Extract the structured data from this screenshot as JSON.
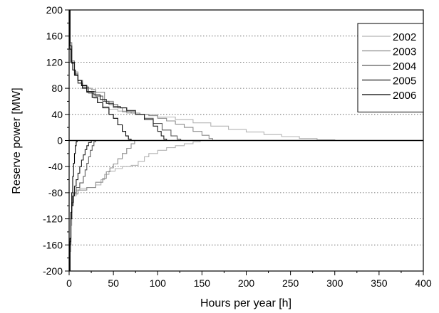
{
  "chart_data": {
    "type": "line",
    "title": "",
    "xlabel": "Hours per year [h]",
    "ylabel": "Reserve power [MW]",
    "xlim": [
      0,
      400
    ],
    "ylim": [
      -200,
      200
    ],
    "x_ticks": [
      0,
      50,
      100,
      150,
      200,
      250,
      300,
      350,
      400
    ],
    "y_ticks": [
      -200,
      -160,
      -120,
      -80,
      -40,
      0,
      40,
      80,
      120,
      160,
      200
    ],
    "grid": "horizontal dotted",
    "legend_position": "top-right",
    "series": [
      {
        "name": "2002",
        "color": "#b4b4b4",
        "upper": [
          [
            0,
            200
          ],
          [
            1,
            150
          ],
          [
            3,
            120
          ],
          [
            6,
            100
          ],
          [
            10,
            88
          ],
          [
            15,
            80
          ],
          [
            22,
            72
          ],
          [
            28,
            65
          ],
          [
            32,
            58
          ],
          [
            38,
            52
          ],
          [
            45,
            48
          ],
          [
            55,
            45
          ],
          [
            65,
            42
          ],
          [
            80,
            40
          ],
          [
            100,
            36
          ],
          [
            120,
            32
          ],
          [
            140,
            27
          ],
          [
            160,
            22
          ],
          [
            180,
            17
          ],
          [
            200,
            13
          ],
          [
            220,
            9
          ],
          [
            240,
            6
          ],
          [
            260,
            3
          ],
          [
            280,
            1
          ],
          [
            300,
            0
          ],
          [
            400,
            0
          ]
        ],
        "lower": [
          [
            0,
            -200
          ],
          [
            1,
            -170
          ],
          [
            2,
            -130
          ],
          [
            3,
            -100
          ],
          [
            5,
            -85
          ],
          [
            8,
            -76
          ],
          [
            12,
            -73
          ],
          [
            20,
            -72
          ],
          [
            30,
            -68
          ],
          [
            36,
            -60
          ],
          [
            40,
            -52
          ],
          [
            45,
            -47
          ],
          [
            52,
            -43
          ],
          [
            60,
            -40
          ],
          [
            70,
            -38
          ],
          [
            78,
            -32
          ],
          [
            85,
            -25
          ],
          [
            90,
            -20
          ],
          [
            100,
            -15
          ],
          [
            110,
            -11
          ],
          [
            120,
            -8
          ],
          [
            130,
            -5
          ],
          [
            140,
            -2
          ],
          [
            148,
            0
          ],
          [
            400,
            0
          ]
        ]
      },
      {
        "name": "2003",
        "color": "#8c8c8c",
        "upper": [
          [
            0,
            200
          ],
          [
            1,
            150
          ],
          [
            3,
            122
          ],
          [
            6,
            105
          ],
          [
            10,
            92
          ],
          [
            15,
            85
          ],
          [
            20,
            80
          ],
          [
            25,
            78
          ],
          [
            30,
            74
          ],
          [
            40,
            60
          ],
          [
            50,
            50
          ],
          [
            60,
            44
          ],
          [
            70,
            42
          ],
          [
            80,
            40
          ],
          [
            90,
            38
          ],
          [
            100,
            34
          ],
          [
            110,
            30
          ],
          [
            120,
            25
          ],
          [
            130,
            20
          ],
          [
            140,
            14
          ],
          [
            150,
            8
          ],
          [
            158,
            3
          ],
          [
            162,
            0
          ],
          [
            400,
            0
          ]
        ],
        "lower": [
          [
            0,
            -200
          ],
          [
            1,
            -160
          ],
          [
            2,
            -120
          ],
          [
            3,
            -95
          ],
          [
            5,
            -82
          ],
          [
            10,
            -76
          ],
          [
            20,
            -72
          ],
          [
            30,
            -64
          ],
          [
            38,
            -58
          ],
          [
            42,
            -48
          ],
          [
            46,
            -42
          ],
          [
            50,
            -36
          ],
          [
            55,
            -28
          ],
          [
            60,
            -20
          ],
          [
            65,
            -12
          ],
          [
            70,
            -5
          ],
          [
            74,
            0
          ],
          [
            400,
            0
          ]
        ]
      },
      {
        "name": "2004",
        "color": "#5a5a5a",
        "upper": [
          [
            0,
            200
          ],
          [
            1,
            145
          ],
          [
            3,
            118
          ],
          [
            6,
            102
          ],
          [
            10,
            92
          ],
          [
            15,
            82
          ],
          [
            22,
            75
          ],
          [
            30,
            68
          ],
          [
            38,
            60
          ],
          [
            45,
            55
          ],
          [
            55,
            50
          ],
          [
            65,
            44
          ],
          [
            75,
            40
          ],
          [
            85,
            34
          ],
          [
            95,
            26
          ],
          [
            105,
            16
          ],
          [
            115,
            7
          ],
          [
            122,
            2
          ],
          [
            126,
            0
          ],
          [
            400,
            0
          ]
        ],
        "lower": [
          [
            0,
            -200
          ],
          [
            1,
            -160
          ],
          [
            2,
            -120
          ],
          [
            3,
            -95
          ],
          [
            5,
            -80
          ],
          [
            8,
            -72
          ],
          [
            12,
            -65
          ],
          [
            16,
            -55
          ],
          [
            18,
            -45
          ],
          [
            20,
            -35
          ],
          [
            22,
            -25
          ],
          [
            24,
            -15
          ],
          [
            26,
            -8
          ],
          [
            28,
            -2
          ],
          [
            30,
            0
          ],
          [
            400,
            0
          ]
        ]
      },
      {
        "name": "2005",
        "color": "#1e1e1e",
        "upper": [
          [
            0,
            200
          ],
          [
            1,
            145
          ],
          [
            3,
            120
          ],
          [
            6,
            100
          ],
          [
            10,
            88
          ],
          [
            15,
            80
          ],
          [
            20,
            75
          ],
          [
            28,
            70
          ],
          [
            35,
            63
          ],
          [
            42,
            57
          ],
          [
            50,
            52
          ],
          [
            58,
            50
          ],
          [
            65,
            46
          ],
          [
            75,
            40
          ],
          [
            85,
            32
          ],
          [
            95,
            22
          ],
          [
            100,
            14
          ],
          [
            104,
            7
          ],
          [
            107,
            2
          ],
          [
            110,
            0
          ],
          [
            400,
            0
          ]
        ],
        "lower": [
          [
            0,
            -200
          ],
          [
            1,
            -155
          ],
          [
            2,
            -120
          ],
          [
            3,
            -100
          ],
          [
            4,
            -85
          ],
          [
            6,
            -70
          ],
          [
            8,
            -60
          ],
          [
            10,
            -50
          ],
          [
            12,
            -40
          ],
          [
            14,
            -30
          ],
          [
            16,
            -22
          ],
          [
            18,
            -14
          ],
          [
            20,
            -8
          ],
          [
            22,
            -3
          ],
          [
            25,
            0
          ],
          [
            400,
            0
          ]
        ]
      },
      {
        "name": "2006",
        "color": "#000000",
        "upper": [
          [
            0,
            200
          ],
          [
            1,
            140
          ],
          [
            2,
            120
          ],
          [
            4,
            108
          ],
          [
            7,
            100
          ],
          [
            10,
            92
          ],
          [
            14,
            84
          ],
          [
            20,
            74
          ],
          [
            26,
            66
          ],
          [
            32,
            58
          ],
          [
            38,
            50
          ],
          [
            45,
            40
          ],
          [
            50,
            34
          ],
          [
            55,
            24
          ],
          [
            60,
            14
          ],
          [
            64,
            7
          ],
          [
            67,
            2
          ],
          [
            70,
            0
          ],
          [
            400,
            0
          ]
        ],
        "lower": [
          [
            0,
            -200
          ],
          [
            1,
            -150
          ],
          [
            2,
            -110
          ],
          [
            3,
            -80
          ],
          [
            4,
            -55
          ],
          [
            5,
            -35
          ],
          [
            6,
            -20
          ],
          [
            7,
            -8
          ],
          [
            8,
            -2
          ],
          [
            9,
            0
          ],
          [
            400,
            0
          ]
        ]
      }
    ]
  }
}
